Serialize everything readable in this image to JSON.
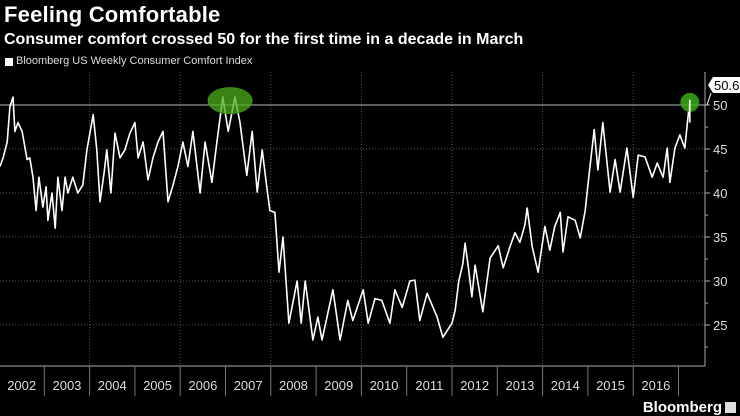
{
  "header": {
    "title": "Feeling Comfortable",
    "subtitle": "Consumer comfort crossed 50 for the first time in a decade in March"
  },
  "footer": {
    "brand": "Bloomberg",
    "brand_icon": "bloomberg-chart-icon"
  },
  "colors": {
    "background": "#000000",
    "line": "#ffffff",
    "highlight": "#4caf1e",
    "grid": "#555555"
  },
  "chart_data": {
    "type": "line",
    "title": "Feeling Comfortable",
    "subtitle": "Consumer comfort crossed 50 for the first time in a decade in March",
    "legend": [
      "Bloomberg US Weekly Consumer Comfort Index"
    ],
    "legend_placement": "top-left",
    "xlabel": "",
    "ylabel": "",
    "xlim": [
      2002.0,
      2017.6
    ],
    "ylim": [
      20.4,
      53.7
    ],
    "grid": true,
    "x_tick_labels": [
      "2002",
      "2003",
      "2004",
      "2005",
      "2006",
      "2007",
      "2008",
      "2009",
      "2010",
      "2011",
      "2012",
      "2013",
      "2014",
      "2015",
      "2016"
    ],
    "y_ticks": [
      25,
      30,
      35,
      40,
      45,
      50
    ],
    "y_tick_labels": [
      "25",
      "30",
      "35",
      "40",
      "45",
      "50"
    ],
    "reference_line": 50,
    "last_value_label": "50.6",
    "highlights": [
      {
        "x": 2007.1,
        "y": 50.5,
        "type": "ellipse"
      },
      {
        "x": 2017.25,
        "y": 50.3,
        "type": "circle"
      }
    ],
    "series": [
      {
        "name": "Bloomberg US Weekly Consumer Comfort Index",
        "points": [
          [
            2002.02,
            43
          ],
          [
            2002.09,
            44
          ],
          [
            2002.18,
            45.8
          ],
          [
            2002.24,
            49.8
          ],
          [
            2002.31,
            50.9
          ],
          [
            2002.35,
            47
          ],
          [
            2002.42,
            48
          ],
          [
            2002.51,
            47
          ],
          [
            2002.62,
            43.8
          ],
          [
            2002.68,
            44
          ],
          [
            2002.75,
            41.8
          ],
          [
            2002.82,
            38
          ],
          [
            2002.88,
            41.8
          ],
          [
            2002.97,
            38.4
          ],
          [
            2003.04,
            40.7
          ],
          [
            2003.08,
            36.9
          ],
          [
            2003.17,
            40
          ],
          [
            2003.24,
            36
          ],
          [
            2003.3,
            41.8
          ],
          [
            2003.39,
            38
          ],
          [
            2003.46,
            41.8
          ],
          [
            2003.52,
            40
          ],
          [
            2003.63,
            41.8
          ],
          [
            2003.74,
            40
          ],
          [
            2003.85,
            40.9
          ],
          [
            2003.94,
            44.9
          ],
          [
            2004.08,
            48.9
          ],
          [
            2004.16,
            44.9
          ],
          [
            2004.23,
            39
          ],
          [
            2004.32,
            42.3
          ],
          [
            2004.38,
            44.9
          ],
          [
            2004.47,
            40
          ],
          [
            2004.56,
            46.8
          ],
          [
            2004.67,
            44
          ],
          [
            2004.78,
            44.9
          ],
          [
            2004.89,
            46.8
          ],
          [
            2005.0,
            48
          ],
          [
            2005.07,
            44
          ],
          [
            2005.18,
            45.8
          ],
          [
            2005.29,
            41.5
          ],
          [
            2005.4,
            44
          ],
          [
            2005.51,
            45.8
          ],
          [
            2005.62,
            47
          ],
          [
            2005.73,
            39
          ],
          [
            2005.84,
            40.9
          ],
          [
            2005.95,
            43
          ],
          [
            2006.06,
            45.8
          ],
          [
            2006.17,
            43
          ],
          [
            2006.28,
            47
          ],
          [
            2006.44,
            40
          ],
          [
            2006.55,
            45.8
          ],
          [
            2006.7,
            41.2
          ],
          [
            2006.81,
            45.8
          ],
          [
            2006.94,
            50.9
          ],
          [
            2007.06,
            47
          ],
          [
            2007.21,
            50.9
          ],
          [
            2007.32,
            48
          ],
          [
            2007.47,
            42
          ],
          [
            2007.59,
            47
          ],
          [
            2007.7,
            40.1
          ],
          [
            2007.81,
            44.9
          ],
          [
            2007.92,
            40.3
          ],
          [
            2007.98,
            38
          ],
          [
            2008.09,
            37.8
          ],
          [
            2008.18,
            31
          ],
          [
            2008.27,
            35
          ],
          [
            2008.4,
            25.2
          ],
          [
            2008.58,
            30
          ],
          [
            2008.67,
            25.2
          ],
          [
            2008.76,
            30
          ],
          [
            2008.93,
            23.3
          ],
          [
            2009.04,
            25.9
          ],
          [
            2009.13,
            23.3
          ],
          [
            2009.24,
            25.9
          ],
          [
            2009.37,
            29
          ],
          [
            2009.53,
            23.3
          ],
          [
            2009.7,
            27.8
          ],
          [
            2009.81,
            25.5
          ],
          [
            2010.04,
            29
          ],
          [
            2010.15,
            25.2
          ],
          [
            2010.3,
            28
          ],
          [
            2010.45,
            27.8
          ],
          [
            2010.63,
            25.2
          ],
          [
            2010.74,
            29
          ],
          [
            2010.9,
            27
          ],
          [
            2011.07,
            30
          ],
          [
            2011.18,
            30.1
          ],
          [
            2011.29,
            25.5
          ],
          [
            2011.45,
            28.6
          ],
          [
            2011.67,
            25.9
          ],
          [
            2011.8,
            23.6
          ],
          [
            2012.0,
            25.2
          ],
          [
            2012.07,
            26.7
          ],
          [
            2012.15,
            30
          ],
          [
            2012.24,
            32
          ],
          [
            2012.29,
            34.3
          ],
          [
            2012.36,
            31.6
          ],
          [
            2012.44,
            28.2
          ],
          [
            2012.51,
            31.8
          ],
          [
            2012.68,
            26.5
          ],
          [
            2012.84,
            32.6
          ],
          [
            2013.02,
            34
          ],
          [
            2013.13,
            31.5
          ],
          [
            2013.28,
            33.9
          ],
          [
            2013.39,
            35.5
          ],
          [
            2013.5,
            34.4
          ],
          [
            2013.61,
            36.4
          ],
          [
            2013.66,
            38.3
          ],
          [
            2013.77,
            33.9
          ],
          [
            2013.9,
            31
          ],
          [
            2014.05,
            36.2
          ],
          [
            2014.16,
            33.5
          ],
          [
            2014.27,
            36.2
          ],
          [
            2014.39,
            37.8
          ],
          [
            2014.45,
            33.3
          ],
          [
            2014.56,
            37.3
          ],
          [
            2014.72,
            36.9
          ],
          [
            2014.83,
            34.9
          ],
          [
            2014.94,
            38
          ],
          [
            2015.0,
            40.9
          ],
          [
            2015.14,
            47.2
          ],
          [
            2015.22,
            42.6
          ],
          [
            2015.33,
            48
          ],
          [
            2015.49,
            40.1
          ],
          [
            2015.6,
            43.8
          ],
          [
            2015.71,
            40.1
          ],
          [
            2015.86,
            45.1
          ],
          [
            2016.0,
            39.5
          ],
          [
            2016.11,
            44.3
          ],
          [
            2016.26,
            44.1
          ],
          [
            2016.42,
            41.8
          ],
          [
            2016.53,
            43.4
          ],
          [
            2016.66,
            41.8
          ],
          [
            2016.75,
            45.1
          ],
          [
            2016.81,
            41.2
          ],
          [
            2016.92,
            45.1
          ],
          [
            2017.03,
            46.6
          ],
          [
            2017.14,
            45.1
          ],
          [
            2017.25,
            50.6
          ]
        ]
      }
    ]
  }
}
